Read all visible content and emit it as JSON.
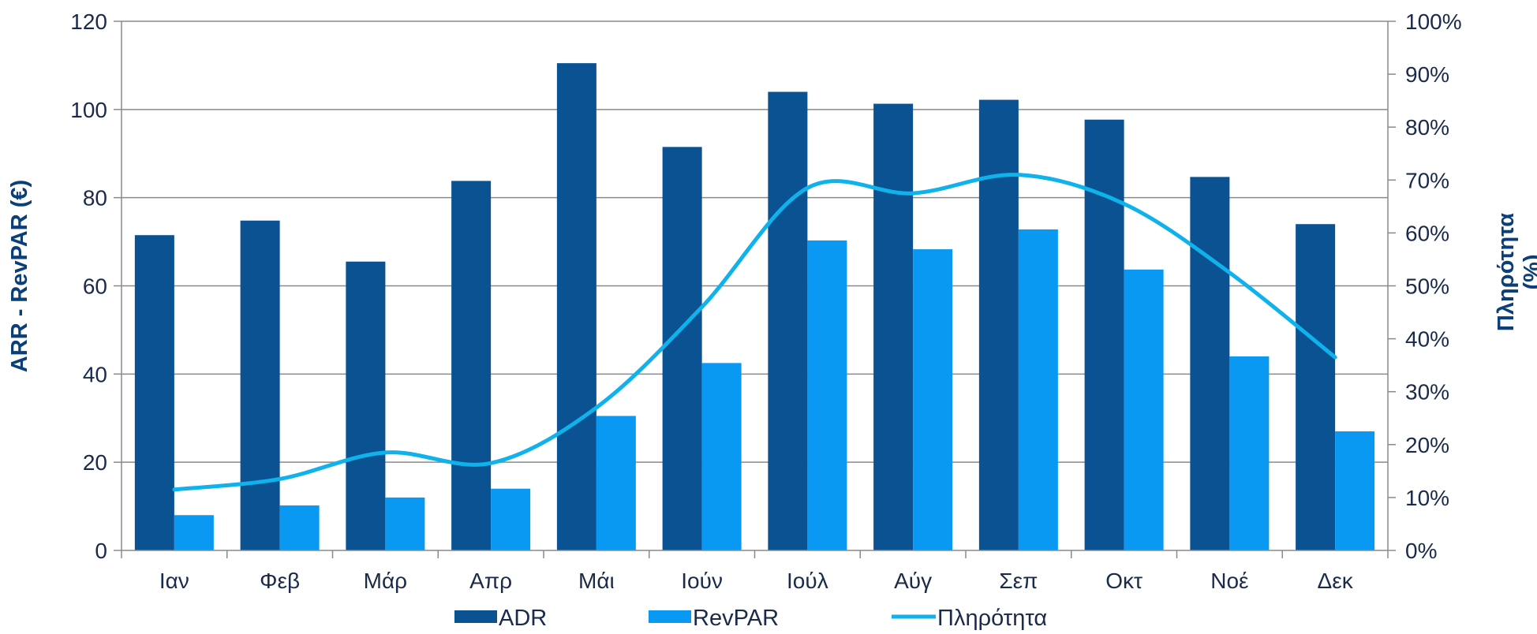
{
  "chart_data": {
    "type": "bar",
    "title": "",
    "categories": [
      "Ιαν",
      "Φεβ",
      "Μάρ",
      "Απρ",
      "Μάι",
      "Ιούν",
      "Ιούλ",
      "Αύγ",
      "Σεπ",
      "Οκτ",
      "Νοέ",
      "Δεκ"
    ],
    "series": [
      {
        "name": "ADR",
        "type": "bar",
        "axis": "left",
        "color": "#0a5291",
        "values": [
          71.5,
          74.8,
          65.5,
          83.8,
          110.5,
          91.5,
          104,
          101.3,
          102.2,
          97.7,
          84.7,
          74
        ]
      },
      {
        "name": "RevPAR",
        "type": "bar",
        "axis": "left",
        "color": "#0a99f2",
        "values": [
          8,
          10.2,
          12,
          14,
          30.5,
          42.5,
          70.3,
          68.3,
          72.8,
          63.7,
          44,
          27
        ]
      },
      {
        "name": "Πληρότητα",
        "type": "line",
        "axis": "right",
        "color": "#0fb2ea",
        "values": [
          11.5,
          13.5,
          18.5,
          16.5,
          27,
          46,
          68.5,
          67.5,
          71,
          65.5,
          52.5,
          36.5
        ]
      }
    ],
    "ylabel": "ARR - RevPAR (€)",
    "ylabel_right": "Πληρότητα (%)",
    "ylim": [
      0,
      120
    ],
    "ylim_right": [
      0,
      100
    ],
    "y_ticks": [
      "0",
      "20",
      "40",
      "60",
      "80",
      "100",
      "120"
    ],
    "y_ticks_right": [
      "0%",
      "10%",
      "20%",
      "30%",
      "40%",
      "50%",
      "60%",
      "70%",
      "80%",
      "90%",
      "100%"
    ],
    "grid": true,
    "legend_position": "bottom"
  }
}
